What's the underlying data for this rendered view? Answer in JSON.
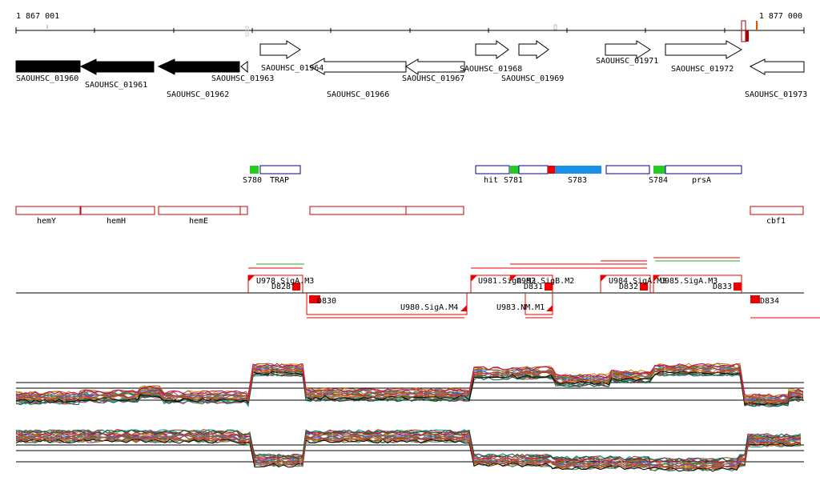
{
  "coordinates": {
    "start": "1 867 001",
    "end": "1 877 000"
  },
  "colors": {
    "gene_fill_strong": "#000000",
    "gene_outline": "#000000",
    "operon_outline": "#cc0000",
    "segment_blue": "#1a90e8",
    "segment_green": "#22cc22",
    "segment_red": "#ee0000",
    "segment_outline": "#000099",
    "feature_red": "#ee0000",
    "feature_green": "#22aa22"
  },
  "genes": [
    {
      "label": "SAOUHSC_01960",
      "strand": "+",
      "filled": true
    },
    {
      "label": "SAOUHSC_01961",
      "strand": "-",
      "filled": true
    },
    {
      "label": "SAOUHSC_01962",
      "strand": "-",
      "filled": true
    },
    {
      "label": "SAOUHSC_01963",
      "strand": "-",
      "filled": false
    },
    {
      "label": "SAOUHSC_01964",
      "strand": "+",
      "filled": false
    },
    {
      "label": "SAOUHSC_01966",
      "strand": "-",
      "filled": false
    },
    {
      "label": "SAOUHSC_01967",
      "strand": "-",
      "filled": false
    },
    {
      "label": "SAOUHSC_01968",
      "strand": "+",
      "filled": false
    },
    {
      "label": "SAOUHSC_01969",
      "strand": "+",
      "filled": false
    },
    {
      "label": "SAOUHSC_01971",
      "strand": "+",
      "filled": false
    },
    {
      "label": "SAOUHSC_01972",
      "strand": "+",
      "filled": false
    },
    {
      "label": "SAOUHSC_01973",
      "strand": "-",
      "filled": false
    }
  ],
  "segments": [
    {
      "label": "S780",
      "color": "green"
    },
    {
      "label": "TRAP",
      "color": "outline"
    },
    {
      "label": "hit",
      "color": "outline"
    },
    {
      "label": "S781",
      "color": "green"
    },
    {
      "label": "S783",
      "color": "blue"
    },
    {
      "label": "S784",
      "color": "green"
    },
    {
      "label": "prsA",
      "color": "outline"
    }
  ],
  "operons": [
    {
      "label": "hemY"
    },
    {
      "label": "hemH"
    },
    {
      "label": "hemE"
    },
    {
      "label": "cbf1"
    }
  ],
  "features_top": [
    {
      "label": "U978.SigA.M3"
    },
    {
      "label": "D828"
    },
    {
      "label": "U981.SigA.M3"
    },
    {
      "label": "U982.SigB.M2"
    },
    {
      "label": "D831"
    },
    {
      "label": "U984.SigA.M3"
    },
    {
      "label": "D832"
    },
    {
      "label": "U985.SigA.M3"
    },
    {
      "label": "D833"
    }
  ],
  "features_bottom": [
    {
      "label": "D830"
    },
    {
      "label": "U980.SigA.M4"
    },
    {
      "label": "U983.NM.M1"
    },
    {
      "label": "D834"
    }
  ]
}
